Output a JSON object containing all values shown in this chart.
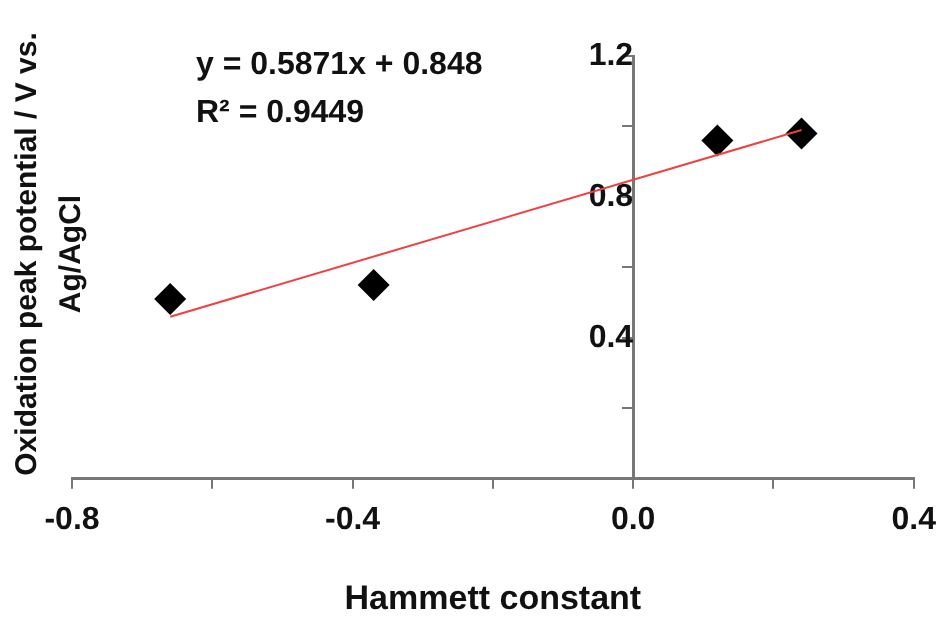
{
  "chart_data": {
    "type": "scatter",
    "xlabel": "Hammett constant",
    "ylabel": "Oxidation peak potential / V vs. Ag/AgCl",
    "annotations": [
      "y = 0.5871x + 0.848",
      "R² = 0.9449"
    ],
    "x": [
      -0.66,
      -0.37,
      0.12,
      0.24
    ],
    "series": [
      {
        "color": "#000000",
        "values": [
          0.51,
          0.55,
          0.96,
          0.98
        ]
      },
      {
        "type": "line",
        "color": "#f04040",
        "marker": "none",
        "x": [
          -0.66,
          0.24
        ],
        "values": [
          0.46,
          0.99
        ]
      }
    ],
    "marker": "diamond",
    "grid": false,
    "legend": false,
    "xlim": [
      -0.8,
      0.4
    ],
    "xticks": [
      -0.8,
      {
        "value": -0.6,
        "label": null
      },
      -0.4,
      {
        "value": -0.2,
        "label": null
      },
      {
        "value": 0,
        "label": "0.0"
      },
      {
        "value": 0.2,
        "label": null
      },
      0.4
    ],
    "ylim": [
      0,
      1.2
    ],
    "yticks": [
      {
        "value": 0.2,
        "label": null
      },
      0.4,
      {
        "value": 0.6,
        "label": null
      },
      0.8,
      {
        "value": 1.0,
        "label": null
      },
      1.2
    ]
  }
}
